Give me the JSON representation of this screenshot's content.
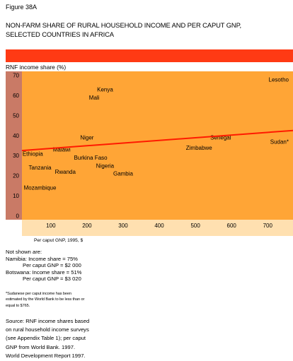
{
  "figure_label": "Figure 38A",
  "title_lines": [
    "NON-FARM SHARE OF RURAL HOUSEHOLD INCOME AND PER CAPUT GNP,",
    "SELECTED COUNTRIES IN AFRICA"
  ],
  "colors": {
    "plot_bg": "#ffa536",
    "band_red": "#ff3a14",
    "y_axis_bg": "#c97a66",
    "x_axis_bg": "#ffe0b0",
    "trend_line": "#ff1a00"
  },
  "chart_data": {
    "type": "scatter",
    "title": "NON-FARM SHARE OF RURAL HOUSEHOLD INCOME AND PER CAPUT GNP, SELECTED COUNTRIES IN AFRICA",
    "xlabel": "Per caput GNP, 1995, $",
    "ylabel": "RNF income share (%)",
    "xlim": [
      20,
      770
    ],
    "ylim": [
      -2,
      72
    ],
    "x_ticks": [
      100,
      200,
      300,
      400,
      500,
      600,
      700
    ],
    "y_ticks": [
      0,
      10,
      20,
      30,
      40,
      50,
      60,
      70
    ],
    "grid": false,
    "points": [
      {
        "label": "Lesotho",
        "x": 710,
        "y": 68
      },
      {
        "label": "Kenya",
        "x": 250,
        "y": 63
      },
      {
        "label": "Mali",
        "x": 220,
        "y": 59
      },
      {
        "label": "Niger",
        "x": 200,
        "y": 39
      },
      {
        "label": "Senegal",
        "x": 570,
        "y": 39
      },
      {
        "label": "Sudan*",
        "x": 720,
        "y": 37
      },
      {
        "label": "Malawi",
        "x": 130,
        "y": 33
      },
      {
        "label": "Zimbabwe",
        "x": 510,
        "y": 34
      },
      {
        "label": "Ethiopia",
        "x": 50,
        "y": 31
      },
      {
        "label": "Burkina Faso",
        "x": 210,
        "y": 29
      },
      {
        "label": "Nigeria",
        "x": 250,
        "y": 25
      },
      {
        "label": "Tanzania",
        "x": 70,
        "y": 24
      },
      {
        "label": "Rwanda",
        "x": 140,
        "y": 22
      },
      {
        "label": "Gambia",
        "x": 300,
        "y": 21
      },
      {
        "label": "Mozambique",
        "x": 70,
        "y": 14
      }
    ],
    "trend": {
      "x": [
        20,
        770
      ],
      "y": [
        32.5,
        42.5
      ]
    }
  },
  "not_shown": {
    "heading": "Not shown are:",
    "namibia_income": "Namibia:  Income share = 75%",
    "namibia_gnp": "Per caput GNP = $2 000",
    "botswana_income": "Botswana:     Income share = 51%",
    "botswana_gnp": "Per caput GNP = $3 020"
  },
  "footnote_lines": [
    "*Sudanese per caput income has been",
    "estimated by the World Bank to be less than or",
    "equal to $765."
  ],
  "source_lines": [
    "Source: RNF income shares based",
    "on rural household income surveys",
    "(see Appendix Table 1); per caput",
    "GNP from World Bank. 1997.",
    "World Development Report 1997."
  ]
}
